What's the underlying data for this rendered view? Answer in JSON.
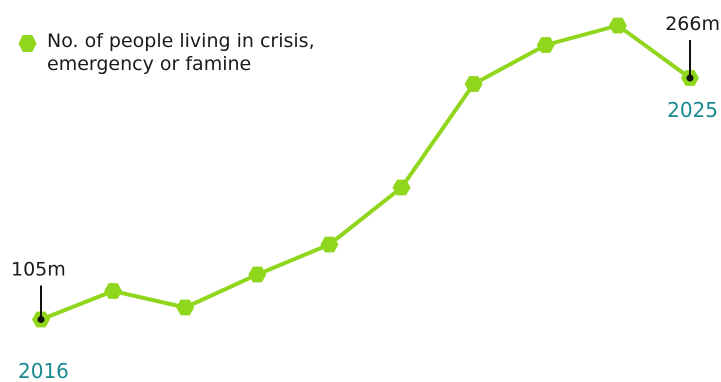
{
  "legend": {
    "label": "No. of people living in crisis, emergency or famine"
  },
  "colors": {
    "series": "#8fd61c",
    "year_label": "#1a8a8f",
    "value_label": "#1a1a1a",
    "leader_line": "#111111"
  },
  "chart_data": {
    "type": "line",
    "x": [
      "2016",
      "2017",
      "2018",
      "2019",
      "2020",
      "2021",
      "2022",
      "2023",
      "2024",
      "2025"
    ],
    "series": [
      {
        "name": "No. of people living in crisis, emergency or famine",
        "values": [
          105,
          124,
          113,
          135,
          155,
          193,
          262,
          288,
          301,
          266
        ],
        "marker": "hexagon"
      }
    ],
    "value_labels": [
      {
        "x": "2016",
        "text": "105m"
      },
      {
        "x": "2025",
        "text": "266m"
      }
    ],
    "year_labels": [
      {
        "x": "2016",
        "text": "2016"
      },
      {
        "x": "2025",
        "text": "2025"
      }
    ],
    "ylim": [
      90,
      310
    ],
    "grid": false,
    "axes_visible": false,
    "legend_position": "top-left"
  }
}
